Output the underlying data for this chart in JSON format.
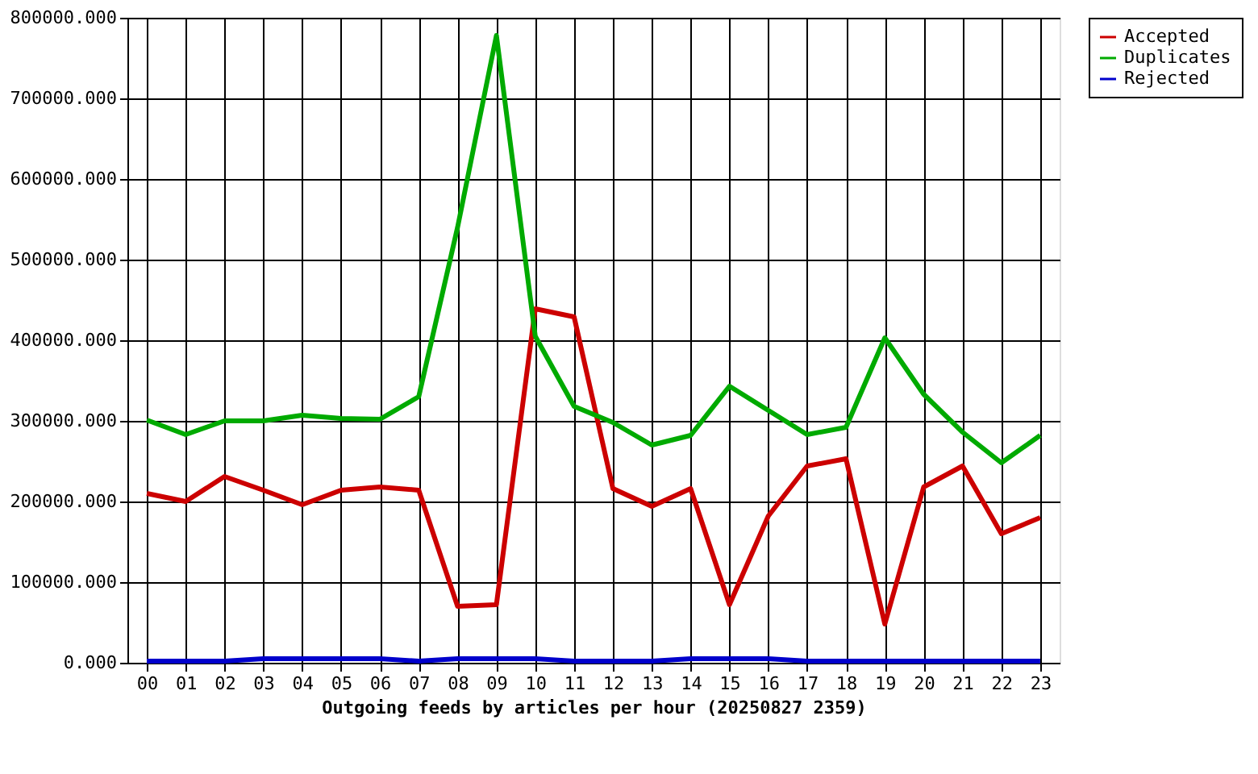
{
  "chart_data": {
    "type": "line",
    "xlabel": "Outgoing feeds by articles per hour (20250827 2359)",
    "categories": [
      "00",
      "01",
      "02",
      "03",
      "04",
      "05",
      "06",
      "07",
      "08",
      "09",
      "10",
      "11",
      "12",
      "13",
      "14",
      "15",
      "16",
      "17",
      "18",
      "19",
      "20",
      "21",
      "22",
      "23"
    ],
    "series": [
      {
        "name": "Accepted",
        "color": "#cc0000",
        "values": [
          210000,
          200000,
          231000,
          214000,
          196000,
          214000,
          218000,
          214000,
          70000,
          72000,
          439000,
          429000,
          216000,
          194000,
          216000,
          72000,
          182000,
          244000,
          253000,
          48000,
          218000,
          244000,
          160000,
          180000
        ]
      },
      {
        "name": "Duplicates",
        "color": "#00aa00",
        "values": [
          301000,
          283000,
          300000,
          300000,
          307000,
          303000,
          302000,
          330000,
          540000,
          778000,
          405000,
          318000,
          298000,
          270000,
          282000,
          343000,
          313000,
          283000,
          292000,
          403000,
          333000,
          286000,
          248000,
          282000
        ]
      },
      {
        "name": "Rejected",
        "color": "#0000cc",
        "values": [
          2000,
          2000,
          2000,
          5000,
          5000,
          5000,
          5000,
          2000,
          5000,
          5000,
          5000,
          2000,
          2000,
          2000,
          5000,
          5000,
          5000,
          2000,
          2000,
          2000,
          2000,
          2000,
          2000,
          2000
        ]
      }
    ],
    "ylim": [
      0,
      800000
    ],
    "yticks": [
      {
        "value": 0,
        "label": "0.000"
      },
      {
        "value": 100000,
        "label": "100000.000"
      },
      {
        "value": 200000,
        "label": "200000.000"
      },
      {
        "value": 300000,
        "label": "300000.000"
      },
      {
        "value": 400000,
        "label": "400000.000"
      },
      {
        "value": 500000,
        "label": "500000.000"
      },
      {
        "value": 600000,
        "label": "600000.000"
      },
      {
        "value": 700000,
        "label": "700000.000"
      },
      {
        "value": 800000,
        "label": "800000.000"
      }
    ],
    "grid": true,
    "legend": "top right",
    "marker": "none",
    "line_style": "solid"
  }
}
